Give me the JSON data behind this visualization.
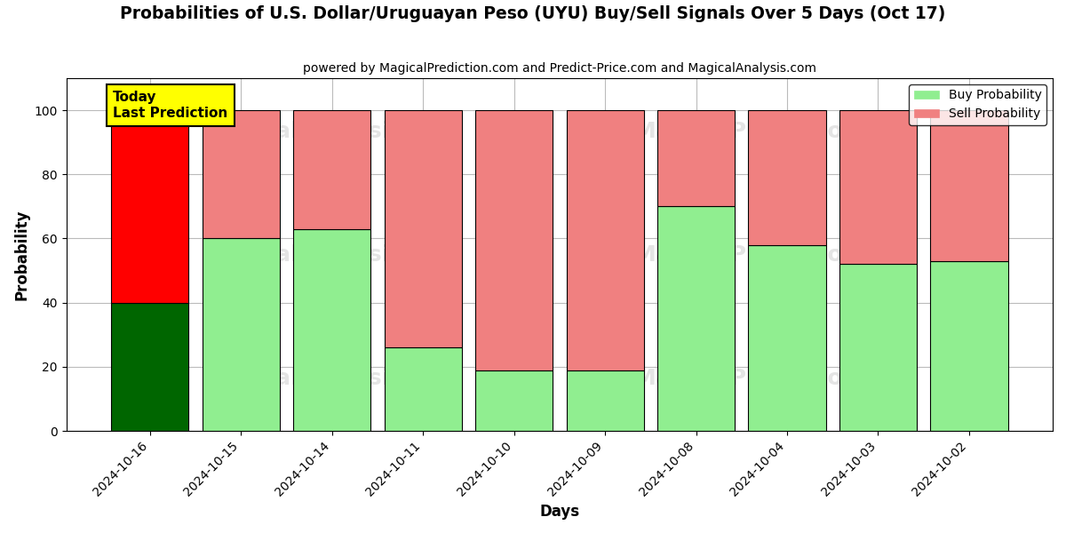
{
  "title": "Probabilities of U.S. Dollar/Uruguayan Peso (UYU) Buy/Sell Signals Over 5 Days (Oct 17)",
  "subtitle": "powered by MagicalPrediction.com and Predict-Price.com and MagicalAnalysis.com",
  "xlabel": "Days",
  "ylabel": "Probability",
  "dates": [
    "2024-10-16",
    "2024-10-15",
    "2024-10-14",
    "2024-10-11",
    "2024-10-10",
    "2024-10-09",
    "2024-10-08",
    "2024-10-04",
    "2024-10-03",
    "2024-10-02"
  ],
  "buy_values": [
    40,
    60,
    63,
    26,
    19,
    19,
    70,
    58,
    52,
    53
  ],
  "sell_values": [
    60,
    40,
    37,
    74,
    81,
    81,
    30,
    42,
    48,
    47
  ],
  "today_buy_color": "#006600",
  "today_sell_color": "#ff0000",
  "buy_color": "#90EE90",
  "sell_color": "#F08080",
  "annotation_text": "Today\nLast Prediction",
  "annotation_bg": "#ffff00",
  "legend_buy_label": "Buy Probability",
  "legend_sell_label": "Sell Probability",
  "ylim": [
    0,
    110
  ],
  "dashed_line_y": 110,
  "bar_width": 0.85,
  "background_color": "#ffffff",
  "grid_color": "#bbbbbb",
  "watermark1": "MagicalAnalysis.com",
  "watermark2": "MagicalPrediction.com"
}
